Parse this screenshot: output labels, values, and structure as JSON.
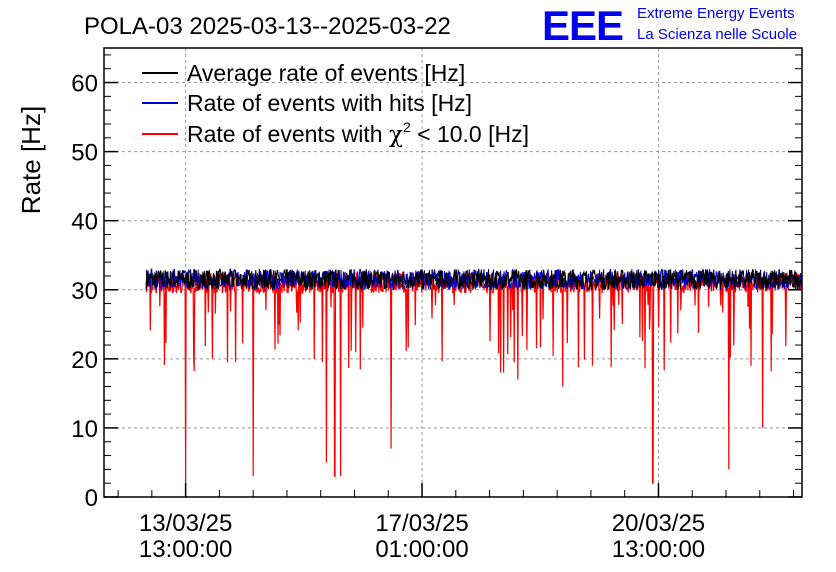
{
  "header": {
    "title": "POLA-03 2025-03-13--2025-03-22",
    "logo_text": "EEE",
    "brand_line1": "Extreme Energy Events",
    "brand_line2": "La Scienza nelle Scuole",
    "brand_color": "#0000ee"
  },
  "chart_data": {
    "type": "line",
    "title": "POLA-03 2025-03-13--2025-03-22",
    "ylabel": "Rate [Hz]",
    "xlabel": "",
    "ylim": [
      0,
      65
    ],
    "xlim": [
      "2025-03-12 08:00",
      "2025-03-22 16:00"
    ],
    "yticks": [
      0,
      10,
      20,
      30,
      40,
      50,
      60
    ],
    "xticks": [
      {
        "date": "2025-03-13 13:00",
        "label_line1": "13/03/25",
        "label_line2": "13:00:00"
      },
      {
        "date": "2025-03-17 01:00",
        "label_line1": "17/03/25",
        "label_line2": "01:00:00"
      },
      {
        "date": "2025-03-20 13:00",
        "label_line1": "20/03/25",
        "label_line2": "13:00:00"
      }
    ],
    "grid": true,
    "legend_position": "top-left",
    "series": [
      {
        "name": "Average rate of events [Hz]",
        "color": "#000000",
        "baseline": 31.5,
        "spread": 1.5
      },
      {
        "name": "Rate of events with hits [Hz]",
        "color": "#0000cc",
        "baseline": 31.5,
        "spread": 1.5
      },
      {
        "name": "Rate of events with χ² < 10.0 [Hz]",
        "color": "#ff0000",
        "baseline": 31.0,
        "spread": 1.5,
        "dips": [
          {
            "date": "2025-03-13 13:00",
            "value": 2
          },
          {
            "date": "2025-03-14 13:00",
            "value": 3
          },
          {
            "date": "2025-03-15 15:00",
            "value": 5
          },
          {
            "date": "2025-03-15 18:00",
            "value": 3
          },
          {
            "date": "2025-03-15 20:00",
            "value": 3
          },
          {
            "date": "2025-03-16 14:00",
            "value": 7
          },
          {
            "date": "2025-03-18 11:00",
            "value": 17
          },
          {
            "date": "2025-03-19 03:00",
            "value": 16
          },
          {
            "date": "2025-03-20 11:00",
            "value": 2
          },
          {
            "date": "2025-03-21 14:00",
            "value": 4
          },
          {
            "date": "2025-03-22 02:00",
            "value": 10
          }
        ],
        "legend_label_main": "Rate of events with ",
        "legend_label_chi": "χ",
        "legend_label_sup": "2",
        "legend_label_tail": " < 10.0 [Hz]"
      }
    ]
  }
}
